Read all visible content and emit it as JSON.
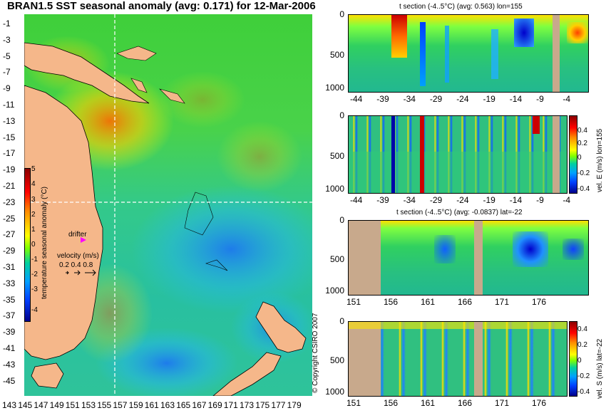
{
  "title": "BRAN1.5 SST seasonal anomaly (avg: 0.171) for 12-Mar-2006",
  "map": {
    "lat_labels": [
      "-1",
      "-3",
      "-5",
      "-7",
      "-9",
      "-11",
      "-13",
      "-15",
      "-17",
      "-19",
      "-21",
      "-23",
      "-25",
      "-27",
      "-29",
      "-31",
      "-33",
      "-35",
      "-37",
      "-39",
      "-41",
      "-43",
      "-45"
    ],
    "lon_labels": [
      "143",
      "145",
      "147",
      "149",
      "151",
      "153",
      "155",
      "157",
      "159",
      "161",
      "163",
      "165",
      "167",
      "169",
      "171",
      "173",
      "175",
      "177",
      "179"
    ],
    "colorbar_label": "temperature seasonal anomaly (°C)",
    "colorbar_ticks": [
      "5",
      "4",
      "3",
      "2",
      "1",
      "0",
      "-1",
      "-2",
      "-3",
      "-4"
    ],
    "drifter_label": "drifter",
    "velocity_label": "velocity (m/s)",
    "velocity_values": "0.2 0.4 0.8",
    "copyright": "© Copyright CSIRO 2007",
    "colors": {
      "drifter": "#ff00ff",
      "land": "#f5b78a",
      "section_line": "#ffffff"
    }
  },
  "panels": {
    "p1": {
      "title": "t section (-4..5°C) (avg: 0.563) lon=155",
      "y_ticks": [
        "0",
        "500",
        "1000"
      ],
      "x_ticks": [
        "-44",
        "-39",
        "-34",
        "-29",
        "-24",
        "-19",
        "-14",
        "-9",
        "-4"
      ]
    },
    "p2": {
      "y_ticks": [
        "0",
        "500",
        "1000"
      ],
      "x_ticks": [
        "-44",
        "-39",
        "-34",
        "-29",
        "-24",
        "-19",
        "-14",
        "-9",
        "-4"
      ],
      "colorbar_label": "vel. E (m/s) lon=155",
      "colorbar_ticks": [
        "0.4",
        "0.2",
        "0",
        "-0.2",
        "-0.4"
      ]
    },
    "p3": {
      "title": "t section (-4..5°C) (avg: -0.0837) lat=-22",
      "y_ticks": [
        "0",
        "500",
        "1000"
      ],
      "x_ticks": [
        "151",
        "156",
        "161",
        "166",
        "171",
        "176"
      ]
    },
    "p4": {
      "y_ticks": [
        "0",
        "500",
        "1000"
      ],
      "x_ticks": [
        "151",
        "156",
        "161",
        "166",
        "171",
        "176"
      ],
      "colorbar_label": "vel. S (m/s) lat=-22",
      "colorbar_ticks": [
        "0.4",
        "0.2",
        "0",
        "-0.2",
        "-0.4"
      ]
    }
  }
}
